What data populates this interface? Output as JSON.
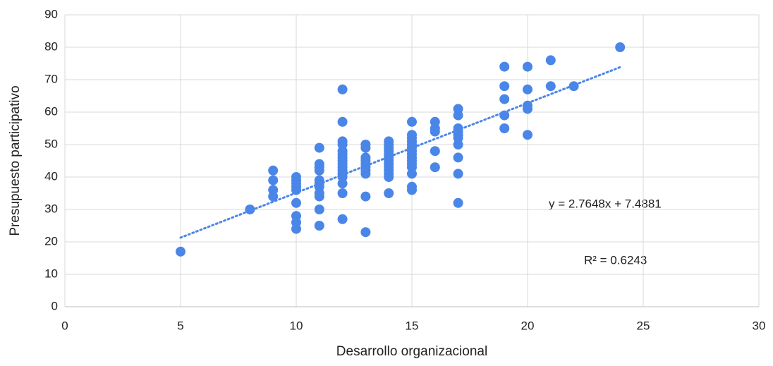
{
  "chart_data": {
    "type": "scatter",
    "x_label": "Desarrollo organizacional",
    "y_label": "Presupuesto participativo",
    "color": "#4a86e8",
    "trendline": {
      "slope": 2.7648,
      "intercept": 7.4881,
      "style": "dotted"
    },
    "annotations": [
      "y = 2.7648x + 7.4881",
      "R² = 0.6243"
    ],
    "x": [
      5,
      8,
      9,
      9,
      9,
      9,
      10,
      10,
      10,
      10,
      10,
      10,
      10,
      10,
      10,
      11,
      11,
      11,
      11,
      11,
      11,
      11,
      11,
      11,
      11,
      11,
      12,
      12,
      12,
      12,
      12,
      12,
      12,
      12,
      12,
      12,
      12,
      12,
      12,
      12,
      12,
      12,
      13,
      13,
      13,
      13,
      13,
      13,
      13,
      13,
      13,
      13,
      14,
      14,
      14,
      14,
      14,
      14,
      14,
      14,
      14,
      14,
      14,
      14,
      14,
      15,
      15,
      15,
      15,
      15,
      15,
      15,
      15,
      15,
      15,
      15,
      15,
      15,
      15,
      15,
      16,
      16,
      16,
      16,
      16,
      17,
      17,
      17,
      17,
      17,
      17,
      17,
      17,
      17,
      17,
      19,
      19,
      19,
      19,
      19,
      20,
      20,
      20,
      20,
      20,
      21,
      21,
      22,
      24
    ],
    "y": [
      17,
      30,
      42,
      39,
      36,
      34,
      40,
      39,
      38,
      37,
      36,
      32,
      28,
      26,
      24,
      49,
      44,
      43,
      42,
      39,
      38,
      37,
      35,
      34,
      30,
      25,
      67,
      57,
      51,
      50,
      48,
      47,
      46,
      45,
      44,
      43,
      42,
      41,
      40,
      38,
      35,
      27,
      50,
      49,
      46,
      45,
      44,
      43,
      42,
      41,
      34,
      23,
      51,
      50,
      49,
      48,
      47,
      46,
      45,
      44,
      43,
      42,
      41,
      40,
      35,
      57,
      53,
      52,
      51,
      50,
      49,
      48,
      47,
      46,
      45,
      44,
      43,
      41,
      37,
      36,
      57,
      55,
      54,
      48,
      43,
      61,
      59,
      55,
      54,
      53,
      52,
      50,
      46,
      41,
      32,
      74,
      68,
      64,
      59,
      55,
      74,
      67,
      62,
      61,
      53,
      76,
      68,
      68,
      80
    ],
    "xlim": [
      0,
      30
    ],
    "xticks": [
      0,
      5,
      10,
      15,
      20,
      25,
      30
    ],
    "ylim": [
      0,
      90
    ],
    "yticks": [
      0,
      10,
      20,
      30,
      40,
      50,
      60,
      70,
      80,
      90
    ],
    "grid": true
  }
}
